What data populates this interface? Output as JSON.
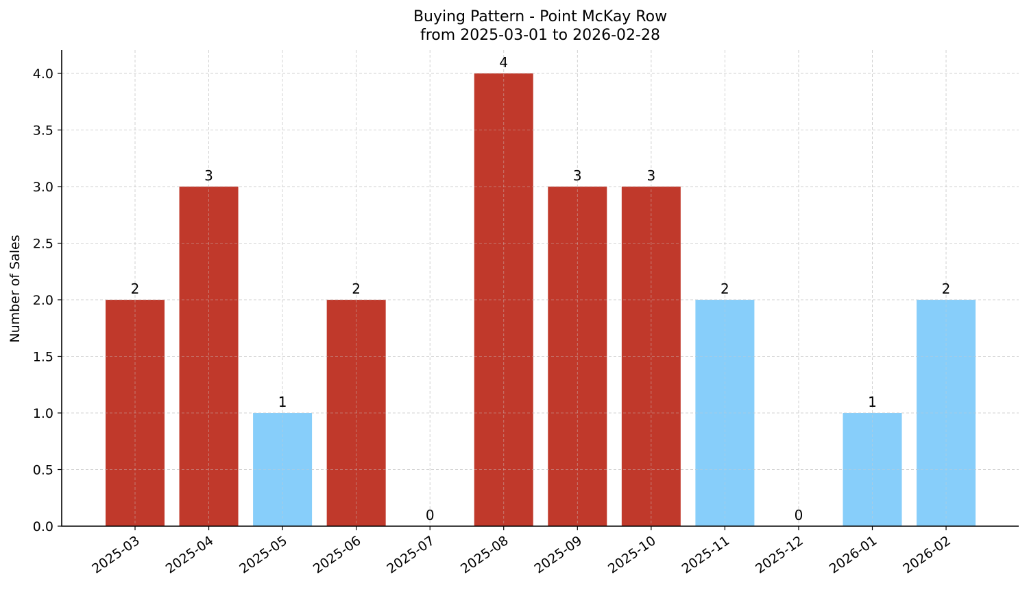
{
  "chart_data": {
    "type": "bar",
    "title": "Buying Pattern - Point McKay Row",
    "subtitle": "from 2025-03-01 to 2026-02-28",
    "xlabel": "",
    "ylabel": "Number of Sales",
    "ylim": [
      0,
      4.2
    ],
    "yticks": [
      "0.0",
      "0.5",
      "1.0",
      "1.5",
      "2.0",
      "2.5",
      "3.0",
      "3.5",
      "4.0"
    ],
    "grid": true,
    "legend": null,
    "categories": [
      "2025-03",
      "2025-04",
      "2025-05",
      "2025-06",
      "2025-07",
      "2025-08",
      "2025-09",
      "2025-10",
      "2025-11",
      "2025-12",
      "2026-01",
      "2026-02"
    ],
    "values": [
      2,
      3,
      1,
      2,
      0,
      4,
      3,
      3,
      2,
      0,
      1,
      2
    ],
    "bar_colors": [
      "#c0392b",
      "#c0392b",
      "#87cefa",
      "#c0392b",
      "#c0392b",
      "#c0392b",
      "#c0392b",
      "#c0392b",
      "#87cefa",
      "#87cefa",
      "#87cefa",
      "#87cefa"
    ],
    "data_labels": [
      "2",
      "3",
      "1",
      "2",
      "0",
      "4",
      "3",
      "3",
      "2",
      "0",
      "1",
      "2"
    ]
  },
  "colors": {
    "high": "#c0392b",
    "low": "#87cefa",
    "grid": "#cccccc",
    "axis": "#000000"
  }
}
